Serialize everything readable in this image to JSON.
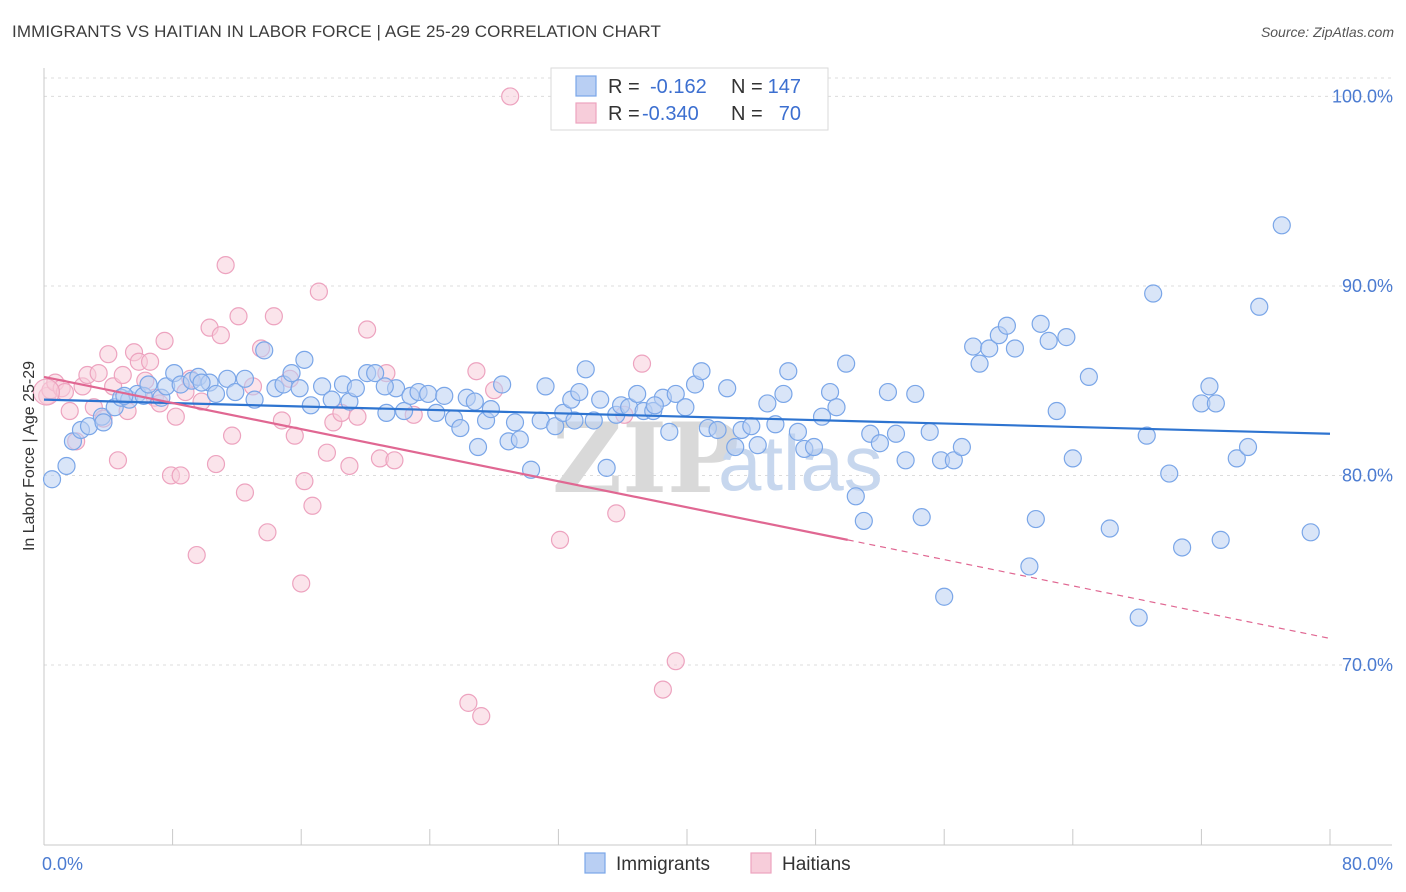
{
  "title": "IMMIGRANTS VS HAITIAN IN LABOR FORCE | AGE 25-29 CORRELATION CHART",
  "source": "Source: ZipAtlas.com",
  "watermark": {
    "zip": "ZIP",
    "atlas": "atlas"
  },
  "legend_top": {
    "rows": [
      {
        "r_label": "R =",
        "r_value": "-0.162",
        "n_label": "N =",
        "n_value": "147"
      },
      {
        "r_label": "R =",
        "r_value": "-0.340",
        "n_label": "N =",
        "n_value": "70"
      }
    ]
  },
  "chart_data": {
    "type": "scatter",
    "title": "IMMIGRANTS VS HAITIAN IN LABOR FORCE | AGE 25-29 CORRELATION CHART",
    "xlabel": "",
    "ylabel": "In Labor Force | Age 25-29",
    "xlim": [
      0,
      80
    ],
    "ylim": [
      60.5,
      101.5
    ],
    "x_tick_labels": [
      "0.0%",
      "80.0%"
    ],
    "y_ticks": [
      70,
      80,
      90,
      100
    ],
    "y_tick_labels": [
      "70.0%",
      "80.0%",
      "90.0%",
      "100.0%"
    ],
    "grid": true,
    "legend_position": "top-center",
    "series": [
      {
        "name": "Immigrants",
        "color": "#7aa6e8",
        "fill": "#b9cff3",
        "line_color": "#2e74d0",
        "r": -0.162,
        "n": 147,
        "trend": {
          "x": [
            0,
            80
          ],
          "y": [
            84.0,
            82.2
          ]
        },
        "points": [
          [
            0.5,
            79.8
          ],
          [
            1.4,
            80.5
          ],
          [
            1.8,
            81.8
          ],
          [
            2.3,
            82.4
          ],
          [
            2.8,
            82.6
          ],
          [
            3.6,
            83.1
          ],
          [
            3.7,
            82.8
          ],
          [
            4.4,
            83.6
          ],
          [
            4.8,
            84.1
          ],
          [
            5.3,
            84.0
          ],
          [
            5.8,
            84.3
          ],
          [
            6.2,
            84.2
          ],
          [
            6.5,
            84.8
          ],
          [
            7.3,
            84.1
          ],
          [
            7.6,
            84.7
          ],
          [
            8.1,
            85.4
          ],
          [
            8.5,
            84.8
          ],
          [
            9.2,
            85.0
          ],
          [
            9.6,
            85.2
          ],
          [
            10.3,
            84.9
          ],
          [
            10.7,
            84.3
          ],
          [
            11.4,
            85.1
          ],
          [
            11.9,
            84.4
          ],
          [
            12.5,
            85.1
          ],
          [
            13.1,
            84.0
          ],
          [
            13.7,
            86.6
          ],
          [
            14.4,
            84.6
          ],
          [
            14.9,
            84.8
          ],
          [
            15.4,
            85.4
          ],
          [
            16.2,
            86.1
          ],
          [
            16.6,
            83.7
          ],
          [
            17.3,
            84.7
          ],
          [
            17.9,
            84.0
          ],
          [
            18.6,
            84.8
          ],
          [
            19.0,
            83.9
          ],
          [
            19.4,
            84.6
          ],
          [
            20.1,
            85.4
          ],
          [
            20.6,
            85.4
          ],
          [
            21.3,
            83.3
          ],
          [
            21.9,
            84.6
          ],
          [
            22.4,
            83.4
          ],
          [
            22.8,
            84.2
          ],
          [
            23.3,
            84.4
          ],
          [
            23.9,
            84.3
          ],
          [
            24.4,
            83.3
          ],
          [
            24.9,
            84.2
          ],
          [
            25.5,
            83.0
          ],
          [
            25.9,
            82.5
          ],
          [
            26.3,
            84.1
          ],
          [
            27.0,
            81.5
          ],
          [
            27.5,
            82.9
          ],
          [
            27.8,
            83.5
          ],
          [
            28.5,
            84.8
          ],
          [
            28.9,
            81.8
          ],
          [
            29.3,
            82.8
          ],
          [
            29.6,
            81.9
          ],
          [
            30.3,
            80.3
          ],
          [
            30.9,
            82.9
          ],
          [
            31.2,
            84.7
          ],
          [
            31.8,
            82.6
          ],
          [
            32.3,
            83.3
          ],
          [
            32.8,
            84.0
          ],
          [
            33.3,
            84.4
          ],
          [
            33.7,
            85.6
          ],
          [
            34.2,
            82.9
          ],
          [
            34.6,
            84.0
          ],
          [
            35.0,
            80.4
          ],
          [
            35.6,
            83.2
          ],
          [
            35.9,
            83.7
          ],
          [
            36.4,
            83.6
          ],
          [
            36.9,
            84.3
          ],
          [
            37.3,
            83.4
          ],
          [
            37.9,
            83.4
          ],
          [
            38.5,
            84.1
          ],
          [
            38.9,
            82.3
          ],
          [
            39.3,
            84.3
          ],
          [
            39.9,
            83.6
          ],
          [
            40.5,
            84.8
          ],
          [
            40.9,
            85.5
          ],
          [
            41.3,
            82.5
          ],
          [
            41.9,
            82.4
          ],
          [
            42.5,
            84.6
          ],
          [
            43.0,
            81.5
          ],
          [
            43.4,
            82.4
          ],
          [
            44.0,
            82.6
          ],
          [
            44.4,
            81.6
          ],
          [
            45.0,
            83.8
          ],
          [
            45.5,
            82.7
          ],
          [
            46.0,
            84.3
          ],
          [
            46.3,
            85.5
          ],
          [
            46.9,
            82.3
          ],
          [
            47.3,
            81.4
          ],
          [
            47.9,
            81.5
          ],
          [
            48.4,
            83.1
          ],
          [
            48.9,
            84.4
          ],
          [
            49.3,
            83.6
          ],
          [
            49.9,
            85.9
          ],
          [
            50.5,
            78.9
          ],
          [
            51.0,
            77.6
          ],
          [
            51.4,
            82.2
          ],
          [
            52.0,
            81.7
          ],
          [
            52.5,
            84.4
          ],
          [
            53.0,
            82.2
          ],
          [
            53.6,
            80.8
          ],
          [
            54.2,
            84.3
          ],
          [
            54.6,
            77.8
          ],
          [
            55.1,
            82.3
          ],
          [
            55.8,
            80.8
          ],
          [
            56.0,
            73.6
          ],
          [
            56.6,
            80.8
          ],
          [
            57.1,
            81.5
          ],
          [
            57.8,
            86.8
          ],
          [
            58.2,
            85.9
          ],
          [
            58.8,
            86.7
          ],
          [
            59.4,
            87.4
          ],
          [
            59.9,
            87.9
          ],
          [
            60.4,
            86.7
          ],
          [
            61.3,
            75.2
          ],
          [
            61.7,
            77.7
          ],
          [
            62.0,
            88.0
          ],
          [
            62.5,
            87.1
          ],
          [
            63.0,
            83.4
          ],
          [
            63.6,
            87.3
          ],
          [
            64.0,
            80.9
          ],
          [
            65.0,
            85.2
          ],
          [
            66.3,
            77.2
          ],
          [
            68.1,
            72.5
          ],
          [
            68.6,
            82.1
          ],
          [
            69.0,
            89.6
          ],
          [
            70.0,
            80.1
          ],
          [
            70.8,
            76.2
          ],
          [
            72.0,
            83.8
          ],
          [
            72.5,
            84.7
          ],
          [
            72.9,
            83.8
          ],
          [
            73.2,
            76.6
          ],
          [
            74.2,
            80.9
          ],
          [
            74.9,
            81.5
          ],
          [
            75.6,
            88.9
          ],
          [
            77.0,
            93.2
          ],
          [
            78.8,
            77.0
          ],
          [
            5.0,
            84.2
          ],
          [
            9.8,
            84.9
          ],
          [
            15.9,
            84.6
          ],
          [
            21.2,
            84.7
          ],
          [
            26.8,
            83.9
          ],
          [
            33.0,
            82.9
          ],
          [
            38.0,
            83.7
          ]
        ]
      },
      {
        "name": "Haitians",
        "color": "#eda3bf",
        "fill": "#f7cdda",
        "line_color": "#e06792",
        "r": -0.34,
        "n": 70,
        "trend": {
          "x": [
            0,
            50
          ],
          "y": [
            85.2,
            76.6
          ]
        },
        "trend_dashed": {
          "x": [
            50,
            80
          ],
          "y": [
            76.6,
            71.4
          ]
        },
        "points": [
          [
            0.2,
            84.2
          ],
          [
            0.4,
            84.5
          ],
          [
            0.7,
            84.9
          ],
          [
            1.1,
            84.6
          ],
          [
            1.3,
            84.4
          ],
          [
            1.6,
            83.4
          ],
          [
            2.0,
            81.8
          ],
          [
            2.4,
            84.7
          ],
          [
            2.7,
            85.3
          ],
          [
            3.1,
            83.6
          ],
          [
            3.4,
            85.4
          ],
          [
            3.7,
            83.0
          ],
          [
            4.0,
            86.4
          ],
          [
            4.3,
            84.7
          ],
          [
            4.6,
            80.8
          ],
          [
            4.9,
            85.3
          ],
          [
            5.2,
            83.4
          ],
          [
            5.6,
            86.5
          ],
          [
            5.9,
            86.0
          ],
          [
            6.3,
            85.0
          ],
          [
            6.6,
            86.0
          ],
          [
            6.9,
            84.1
          ],
          [
            7.2,
            83.8
          ],
          [
            7.5,
            87.1
          ],
          [
            7.9,
            80.0
          ],
          [
            8.2,
            83.1
          ],
          [
            8.5,
            80.0
          ],
          [
            8.8,
            84.4
          ],
          [
            9.1,
            85.1
          ],
          [
            9.5,
            75.8
          ],
          [
            9.8,
            83.9
          ],
          [
            10.3,
            87.8
          ],
          [
            10.7,
            80.6
          ],
          [
            11.0,
            87.4
          ],
          [
            11.3,
            91.1
          ],
          [
            11.7,
            82.1
          ],
          [
            12.1,
            88.4
          ],
          [
            12.5,
            79.1
          ],
          [
            13.0,
            84.7
          ],
          [
            13.5,
            86.7
          ],
          [
            13.9,
            77.0
          ],
          [
            14.3,
            88.4
          ],
          [
            14.8,
            82.9
          ],
          [
            15.3,
            85.1
          ],
          [
            15.6,
            82.1
          ],
          [
            16.0,
            74.3
          ],
          [
            16.2,
            79.7
          ],
          [
            16.7,
            78.4
          ],
          [
            17.1,
            89.7
          ],
          [
            17.6,
            81.2
          ],
          [
            18.0,
            82.8
          ],
          [
            18.5,
            83.3
          ],
          [
            19.0,
            80.5
          ],
          [
            19.5,
            83.1
          ],
          [
            20.1,
            87.7
          ],
          [
            20.9,
            80.9
          ],
          [
            21.3,
            85.4
          ],
          [
            21.8,
            80.8
          ],
          [
            23.0,
            83.2
          ],
          [
            26.4,
            68.0
          ],
          [
            26.9,
            85.5
          ],
          [
            27.2,
            67.3
          ],
          [
            28.0,
            84.5
          ],
          [
            29.0,
            100.0
          ],
          [
            32.1,
            76.6
          ],
          [
            35.6,
            78.0
          ],
          [
            36.1,
            83.2
          ],
          [
            37.2,
            85.9
          ],
          [
            38.5,
            68.7
          ],
          [
            39.3,
            70.2
          ]
        ]
      }
    ]
  },
  "legend_bottom": [
    "Immigrants",
    "Haitians"
  ]
}
